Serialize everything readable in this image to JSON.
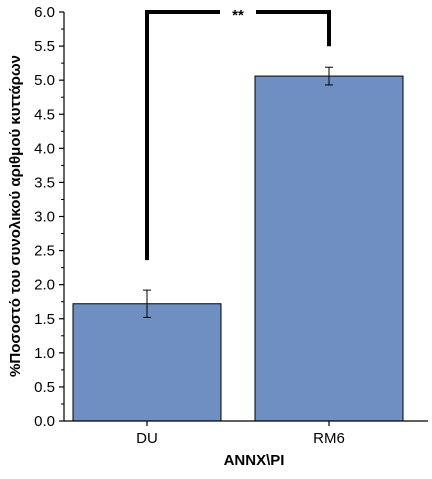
{
  "chart_data": {
    "type": "bar",
    "categories": [
      "DU",
      "RM6"
    ],
    "values": [
      1.72,
      5.06
    ],
    "error": [
      0.2,
      0.13
    ],
    "xlabel": "ANNX\\PI",
    "ylabel": "%Ποσοστό του συνολικού αριθμού κυττάρων",
    "ylim": [
      0,
      6
    ],
    "yticks": [
      "0.0",
      "0.5",
      "1.0",
      "1.5",
      "2.0",
      "2.5",
      "3.0",
      "3.5",
      "4.0",
      "4.5",
      "5.0",
      "5.5",
      "6.0"
    ],
    "grid": false,
    "bar_color": "#6f8fc2",
    "significance": {
      "between": [
        "DU",
        "RM6"
      ],
      "label": "**"
    }
  }
}
